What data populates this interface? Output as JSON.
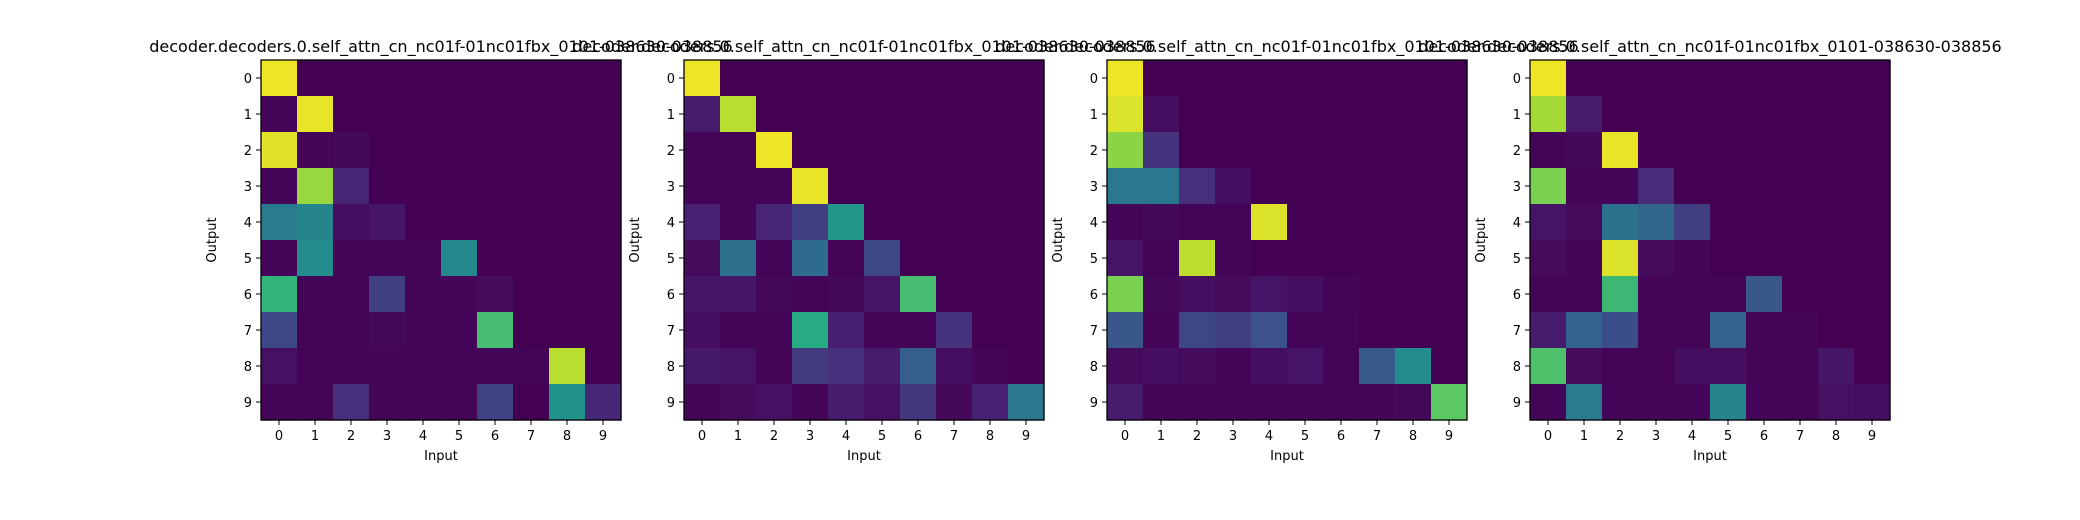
{
  "chart_data": [
    {
      "type": "heatmap",
      "title": "decoder.decoders.0.self_attn_cn_nc01f-01nc01fbx_0101-038630-038856",
      "xlabel": "Input",
      "ylabel": "Output",
      "x_ticks": [
        "0",
        "1",
        "2",
        "3",
        "4",
        "5",
        "6",
        "7",
        "8",
        "9"
      ],
      "y_ticks": [
        "0",
        "1",
        "2",
        "3",
        "4",
        "5",
        "6",
        "7",
        "8",
        "9"
      ],
      "colormap": "viridis",
      "vrange": [
        0,
        1
      ],
      "values": [
        [
          0.98,
          0,
          0,
          0,
          0,
          0,
          0,
          0,
          0,
          0
        ],
        [
          0.02,
          0.97,
          0,
          0,
          0,
          0,
          0,
          0,
          0,
          0
        ],
        [
          0.96,
          0.02,
          0.03,
          0,
          0,
          0,
          0,
          0,
          0,
          0
        ],
        [
          0.02,
          0.85,
          0.13,
          0,
          0,
          0,
          0,
          0,
          0,
          0
        ],
        [
          0.42,
          0.45,
          0.05,
          0.08,
          0,
          0,
          0,
          0,
          0,
          0
        ],
        [
          0.02,
          0.48,
          0.01,
          0.01,
          0.01,
          0.47,
          0,
          0,
          0,
          0
        ],
        [
          0.66,
          0.01,
          0.01,
          0.2,
          0.01,
          0.02,
          0.04,
          0,
          0,
          0
        ],
        [
          0.22,
          0.01,
          0.01,
          0.03,
          0.02,
          0.01,
          0.7,
          0,
          0,
          0
        ],
        [
          0.06,
          0.01,
          0.01,
          0.02,
          0.01,
          0.01,
          0.01,
          0.01,
          0.9,
          0
        ],
        [
          0.01,
          0.01,
          0.16,
          0.01,
          0.01,
          0.01,
          0.21,
          0,
          0.51,
          0.14
        ]
      ]
    },
    {
      "type": "heatmap",
      "title": "decoder.decoders.0.self_attn_cn_nc01f-01nc01fbx_0101-038630-038856",
      "xlabel": "Input",
      "ylabel": "Output",
      "x_ticks": [
        "0",
        "1",
        "2",
        "3",
        "4",
        "5",
        "6",
        "7",
        "8",
        "9"
      ],
      "y_ticks": [
        "0",
        "1",
        "2",
        "3",
        "4",
        "5",
        "6",
        "7",
        "8",
        "9"
      ],
      "colormap": "viridis",
      "vrange": [
        0,
        1
      ],
      "values": [
        [
          0.98,
          0,
          0,
          0,
          0,
          0,
          0,
          0,
          0,
          0
        ],
        [
          0.1,
          0.9,
          0,
          0,
          0,
          0,
          0,
          0,
          0,
          0
        ],
        [
          0.01,
          0.01,
          0.98,
          0,
          0,
          0,
          0,
          0,
          0,
          0
        ],
        [
          0.01,
          0.01,
          0.01,
          0.97,
          0,
          0,
          0,
          0,
          0,
          0
        ],
        [
          0.12,
          0.02,
          0.13,
          0.2,
          0.53,
          0,
          0,
          0,
          0,
          0
        ],
        [
          0.04,
          0.37,
          0.01,
          0.35,
          0.01,
          0.22,
          0,
          0,
          0,
          0
        ],
        [
          0.07,
          0.08,
          0.03,
          0.01,
          0.03,
          0.08,
          0.7,
          0,
          0,
          0
        ],
        [
          0.05,
          0.01,
          0.02,
          0.62,
          0.11,
          0.01,
          0.01,
          0.17,
          0,
          0
        ],
        [
          0.09,
          0.07,
          0.02,
          0.19,
          0.16,
          0.1,
          0.3,
          0.05,
          0.02,
          0
        ],
        [
          0.01,
          0.04,
          0.06,
          0.02,
          0.1,
          0.06,
          0.18,
          0.03,
          0.12,
          0.4
        ]
      ]
    },
    {
      "type": "heatmap",
      "title": "decoder.decoders.0.self_attn_cn_nc01f-01nc01fbx_0101-038630-038856",
      "xlabel": "Input",
      "ylabel": "Output",
      "x_ticks": [
        "0",
        "1",
        "2",
        "3",
        "4",
        "5",
        "6",
        "7",
        "8",
        "9"
      ],
      "y_ticks": [
        "0",
        "1",
        "2",
        "3",
        "4",
        "5",
        "6",
        "7",
        "8",
        "9"
      ],
      "colormap": "viridis",
      "vrange": [
        0,
        1
      ],
      "values": [
        [
          0.98,
          0,
          0,
          0,
          0,
          0,
          0,
          0,
          0,
          0
        ],
        [
          0.95,
          0.05,
          0,
          0,
          0,
          0,
          0,
          0,
          0,
          0
        ],
        [
          0.83,
          0.17,
          0,
          0,
          0,
          0,
          0,
          0,
          0,
          0
        ],
        [
          0.4,
          0.4,
          0.16,
          0.05,
          0,
          0,
          0,
          0,
          0,
          0
        ],
        [
          0.01,
          0.03,
          0.01,
          0.01,
          0.95,
          0,
          0,
          0,
          0,
          0
        ],
        [
          0.07,
          0.01,
          0.91,
          0.01,
          0,
          0,
          0,
          0,
          0,
          0
        ],
        [
          0.8,
          0.03,
          0.05,
          0.04,
          0.07,
          0.05,
          0.02,
          0,
          0,
          0
        ],
        [
          0.27,
          0.02,
          0.22,
          0.2,
          0.25,
          0.01,
          0.01,
          0,
          0,
          0
        ],
        [
          0.04,
          0.05,
          0.04,
          0.02,
          0.05,
          0.07,
          0.01,
          0.28,
          0.48,
          0
        ],
        [
          0.1,
          0.01,
          0.01,
          0.01,
          0.01,
          0.01,
          0.01,
          0.02,
          0.03,
          0.75
        ]
      ]
    },
    {
      "type": "heatmap",
      "title": "decoder.decoders.0.self_attn_cn_nc01f-01nc01fbx_0101-038630-038856",
      "xlabel": "Input",
      "ylabel": "Output",
      "x_ticks": [
        "0",
        "1",
        "2",
        "3",
        "4",
        "5",
        "6",
        "7",
        "8",
        "9"
      ],
      "y_ticks": [
        "0",
        "1",
        "2",
        "3",
        "4",
        "5",
        "6",
        "7",
        "8",
        "9"
      ],
      "colormap": "viridis",
      "vrange": [
        0,
        1
      ],
      "values": [
        [
          0.98,
          0,
          0,
          0,
          0,
          0,
          0,
          0,
          0,
          0
        ],
        [
          0.87,
          0.1,
          0,
          0,
          0,
          0,
          0,
          0,
          0,
          0
        ],
        [
          0.01,
          0.03,
          0.97,
          0,
          0,
          0,
          0,
          0,
          0,
          0
        ],
        [
          0.8,
          0.01,
          0.01,
          0.15,
          0,
          0,
          0,
          0,
          0,
          0
        ],
        [
          0.07,
          0.04,
          0.38,
          0.33,
          0.2,
          0,
          0,
          0,
          0,
          0
        ],
        [
          0.04,
          0.01,
          0.95,
          0.04,
          0.02,
          0,
          0,
          0,
          0,
          0
        ],
        [
          0.01,
          0.01,
          0.68,
          0.01,
          0.02,
          0.01,
          0.27,
          0,
          0,
          0
        ],
        [
          0.1,
          0.32,
          0.24,
          0.02,
          0.01,
          0.32,
          0.01,
          0.02,
          0,
          0
        ],
        [
          0.72,
          0.04,
          0.01,
          0.01,
          0.05,
          0.05,
          0.01,
          0.01,
          0.08,
          0
        ],
        [
          0.01,
          0.42,
          0.01,
          0.02,
          0.01,
          0.45,
          0.02,
          0.01,
          0.06,
          0.05
        ]
      ]
    }
  ]
}
